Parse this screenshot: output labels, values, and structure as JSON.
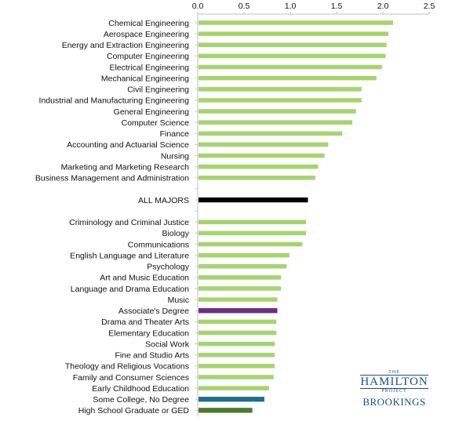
{
  "chart_data": {
    "type": "bar",
    "orientation": "horizontal",
    "xlim": [
      0,
      2.5
    ],
    "x_ticks": [
      "0.0",
      "0.5",
      "1.0",
      "1.5",
      "2.0",
      "2.5"
    ],
    "x_tick_values": [
      0,
      0.5,
      1.0,
      1.5,
      2.0,
      2.5
    ],
    "axis_position": "top",
    "grid": false,
    "colors": {
      "major": "#a6d46e",
      "all_majors": "#000000",
      "associates": "#6b2c86",
      "some_college": "#1f6e8c",
      "high_school": "#4a7a2e"
    },
    "bars": [
      {
        "label": "Chemical Engineering",
        "value": 2.11,
        "color": "major"
      },
      {
        "label": "Aerospace Engineering",
        "value": 2.06,
        "color": "major"
      },
      {
        "label": "Energy and Extraction Engineering",
        "value": 2.04,
        "color": "major"
      },
      {
        "label": "Computer Engineering",
        "value": 2.03,
        "color": "major"
      },
      {
        "label": "Electrical Engineering",
        "value": 1.99,
        "color": "major"
      },
      {
        "label": "Mechanical Engineering",
        "value": 1.93,
        "color": "major"
      },
      {
        "label": "Civil Engineering",
        "value": 1.77,
        "color": "major"
      },
      {
        "label": "Industrial and Manufacturing Engineering",
        "value": 1.77,
        "color": "major"
      },
      {
        "label": "General Engineering",
        "value": 1.71,
        "color": "major"
      },
      {
        "label": "Computer Science",
        "value": 1.67,
        "color": "major"
      },
      {
        "label": "Finance",
        "value": 1.56,
        "color": "major"
      },
      {
        "label": "Accounting and Actuarial Science",
        "value": 1.41,
        "color": "major"
      },
      {
        "label": "Nursing",
        "value": 1.37,
        "color": "major"
      },
      {
        "label": "Marketing and Marketing Research",
        "value": 1.3,
        "color": "major"
      },
      {
        "label": "Business Management and Administration",
        "value": 1.27,
        "color": "major"
      },
      {
        "label": "",
        "value": null,
        "color": "gap"
      },
      {
        "label": "ALL MAJORS",
        "value": 1.19,
        "color": "all_majors"
      },
      {
        "label": "",
        "value": null,
        "color": "gap"
      },
      {
        "label": "Criminology and Criminal Justice",
        "value": 1.17,
        "color": "major"
      },
      {
        "label": "Biology",
        "value": 1.17,
        "color": "major"
      },
      {
        "label": "Communications",
        "value": 1.13,
        "color": "major"
      },
      {
        "label": "English Language and Literature",
        "value": 0.99,
        "color": "major"
      },
      {
        "label": "Psychology",
        "value": 0.96,
        "color": "major"
      },
      {
        "label": "Art and Music Education",
        "value": 0.9,
        "color": "major"
      },
      {
        "label": "Language and Drama Education",
        "value": 0.9,
        "color": "major"
      },
      {
        "label": "Music",
        "value": 0.86,
        "color": "major"
      },
      {
        "label": "Associate's Degree",
        "value": 0.86,
        "color": "associates"
      },
      {
        "label": "Drama and Theater Arts",
        "value": 0.85,
        "color": "major"
      },
      {
        "label": "Elementary Education",
        "value": 0.85,
        "color": "major"
      },
      {
        "label": "Social Work",
        "value": 0.83,
        "color": "major"
      },
      {
        "label": "Fine and Studio Arts",
        "value": 0.83,
        "color": "major"
      },
      {
        "label": "Theology and Religious Vocations",
        "value": 0.83,
        "color": "major"
      },
      {
        "label": "Family and Consumer Sciences",
        "value": 0.82,
        "color": "major"
      },
      {
        "label": "Early Childhood Education",
        "value": 0.77,
        "color": "major"
      },
      {
        "label": "Some College, No Degree",
        "value": 0.72,
        "color": "some_college"
      },
      {
        "label": "High School Graduate or GED",
        "value": 0.59,
        "color": "high_school"
      }
    ]
  },
  "logo": {
    "the": "THE",
    "hamilton": "HAMILTON",
    "project": "PROJECT",
    "brookings": "BROOKINGS"
  }
}
